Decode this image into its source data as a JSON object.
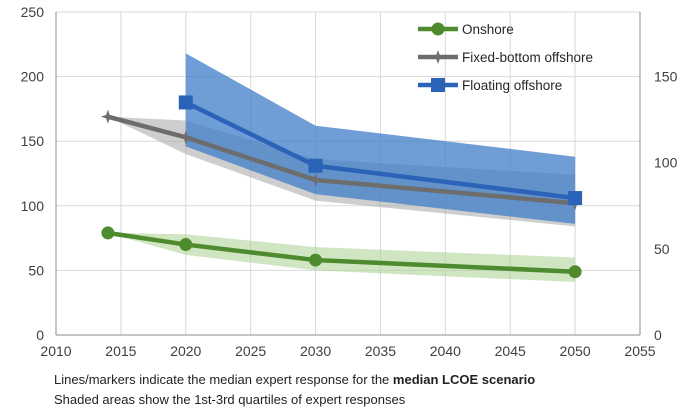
{
  "chart_data": {
    "type": "line",
    "x_axis": {
      "min": 2010,
      "max": 2055,
      "step": 5,
      "ticks": [
        "2010",
        "2015",
        "2020",
        "2025",
        "2030",
        "2035",
        "2040",
        "2045",
        "2050",
        "2055"
      ]
    },
    "y_axis_left": {
      "min": 0,
      "max": 250,
      "step": 50,
      "ticks": [
        "0",
        "50",
        "100",
        "150",
        "200",
        "250"
      ]
    },
    "y_axis_right": {
      "min": 0,
      "max": 187.5,
      "tick_values": [
        0,
        50,
        100,
        150
      ],
      "ticks": [
        "0",
        "50",
        "100",
        "150"
      ]
    },
    "grid": true,
    "legend_position": "top-right",
    "series": [
      {
        "name": "Onshore",
        "color": "#4e8a2e",
        "band_color": "#a9cf8e",
        "marker": "circle",
        "x": [
          2014,
          2020,
          2030,
          2050
        ],
        "values": [
          79,
          70,
          58,
          49
        ],
        "band": {
          "x": [
            2014,
            2020,
            2030,
            2050
          ],
          "lower": [
            79,
            62,
            50,
            41
          ],
          "upper": [
            79,
            78,
            68,
            60
          ]
        }
      },
      {
        "name": "Fixed-bottom offshore",
        "color": "#6d6d6d",
        "band_color": "#a6a6a6",
        "marker": "star",
        "x": [
          2014,
          2020,
          2030,
          2050
        ],
        "values": [
          169,
          153,
          120,
          102
        ],
        "band": {
          "x": [
            2014,
            2020,
            2030,
            2050
          ],
          "lower": [
            169,
            140,
            104,
            84
          ],
          "upper": [
            169,
            166,
            136,
            124
          ]
        }
      },
      {
        "name": "Floating offshore",
        "color": "#2a63b8",
        "band_color": "#3f7cc7",
        "marker": "square",
        "x": [
          2020,
          2030,
          2050
        ],
        "values": [
          180,
          131,
          106
        ],
        "band": {
          "x": [
            2020,
            2030,
            2050
          ],
          "lower": [
            146,
            109,
            86
          ],
          "upper": [
            218,
            162,
            138
          ]
        }
      }
    ]
  },
  "caption": {
    "line1_prefix": "Lines/markers indicate the median expert response for the ",
    "line1_bold": "median LCOE scenario",
    "line2": "Shaded areas show the 1st-3rd quartiles of expert responses"
  }
}
